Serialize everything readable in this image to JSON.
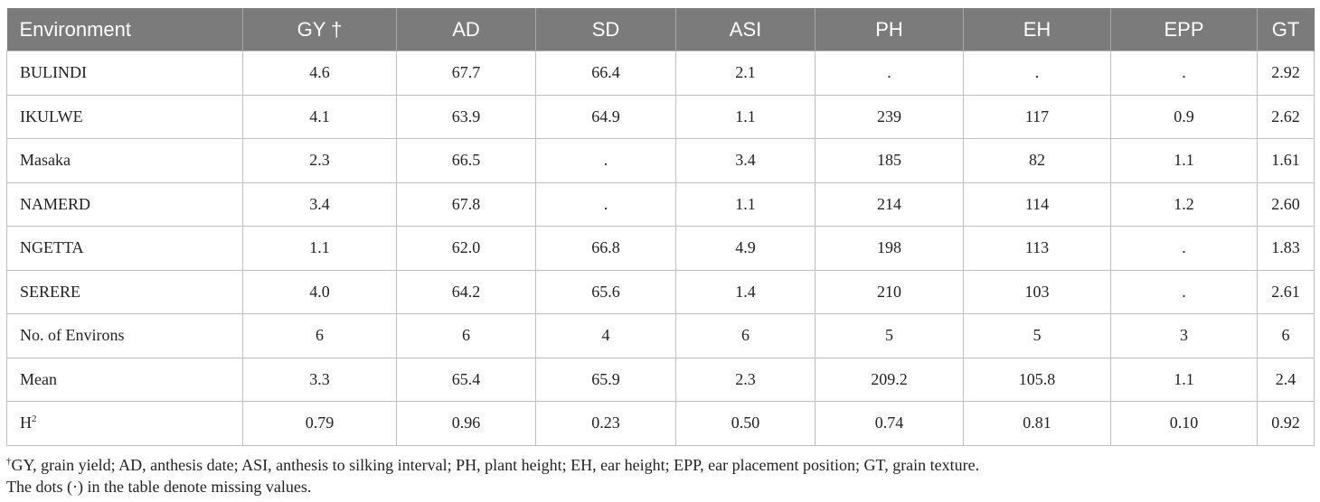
{
  "table": {
    "headers": [
      "Environment",
      "GY †",
      "AD",
      "SD",
      "ASI",
      "PH",
      "EH",
      "EPP",
      "GT"
    ],
    "rows": [
      [
        "BULINDI",
        "4.6",
        "67.7",
        "66.4",
        "2.1",
        ".",
        ".",
        ".",
        "2.92"
      ],
      [
        "IKULWE",
        "4.1",
        "63.9",
        "64.9",
        "1.1",
        "239",
        "117",
        "0.9",
        "2.62"
      ],
      [
        "Masaka",
        "2.3",
        "66.5",
        ".",
        "3.4",
        "185",
        "82",
        "1.1",
        "1.61"
      ],
      [
        "NAMERD",
        "3.4",
        "67.8",
        ".",
        "1.1",
        "214",
        "114",
        "1.2",
        "2.60"
      ],
      [
        "NGETTA",
        "1.1",
        "62.0",
        "66.8",
        "4.9",
        "198",
        "113",
        ".",
        "1.83"
      ],
      [
        "SERERE",
        "4.0",
        "64.2",
        "65.6",
        "1.4",
        "210",
        "103",
        ".",
        "2.61"
      ],
      [
        "No. of Environs",
        "6",
        "6",
        "4",
        "6",
        "5",
        "5",
        "3",
        "6"
      ],
      [
        "Mean",
        "3.3",
        "65.4",
        "65.9",
        "2.3",
        "209.2",
        "105.8",
        "1.1",
        "2.4"
      ]
    ],
    "h2_row": {
      "label_base": "H",
      "label_sup": "2",
      "values": [
        "0.79",
        "0.96",
        "0.23",
        "0.50",
        "0.74",
        "0.81",
        "0.10",
        "0.92"
      ]
    }
  },
  "footnotes": {
    "dagger": "†",
    "line1": "GY, grain yield; AD, anthesis date; ASI, anthesis to silking interval; PH, plant height; EH, ear height; EPP, ear placement position; GT, grain texture.",
    "line2": "The dots (·) in the table denote missing values."
  }
}
